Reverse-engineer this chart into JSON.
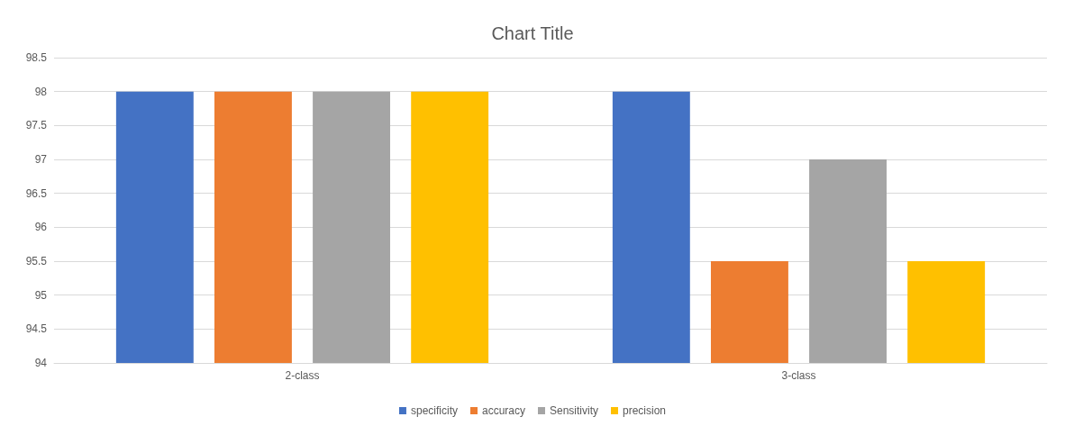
{
  "chart_data": {
    "type": "bar",
    "title": "Chart Title",
    "categories": [
      "2-class",
      "3-class"
    ],
    "series": [
      {
        "name": "specificity",
        "color": "#4472c4",
        "values": [
          98,
          98
        ]
      },
      {
        "name": "accuracy",
        "color": "#ed7d31",
        "values": [
          98,
          95.5
        ]
      },
      {
        "name": "Sensitivity",
        "color": "#a5a5a5",
        "values": [
          98,
          97
        ]
      },
      {
        "name": "precision",
        "color": "#ffc000",
        "values": [
          98,
          95.5
        ]
      }
    ],
    "ylim": [
      94,
      98.5
    ],
    "yticks": [
      94,
      94.5,
      95,
      95.5,
      96,
      96.5,
      97,
      97.5,
      98,
      98.5
    ],
    "grid": "y",
    "legend": "bottom"
  }
}
